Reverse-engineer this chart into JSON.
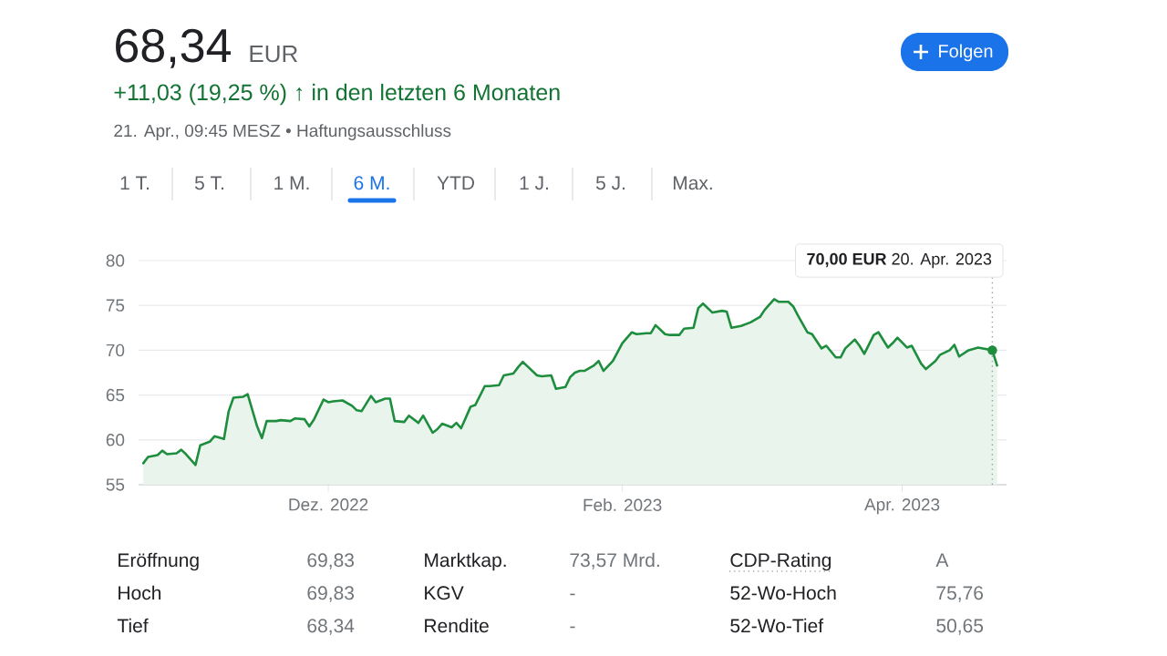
{
  "chart_data": {
    "type": "area",
    "color": "#1e8e3e",
    "x": [
      "2022-10-23",
      "2022-10-24",
      "2022-10-26",
      "2022-10-27",
      "2022-10-28",
      "2022-10-30",
      "2022-10-31",
      "2022-11-01",
      "2022-11-03",
      "2022-11-04",
      "2022-11-06",
      "2022-11-07",
      "2022-11-09",
      "2022-11-10",
      "2022-11-11",
      "2022-11-13",
      "2022-11-14",
      "2022-11-16",
      "2022-11-17",
      "2022-11-18",
      "2022-11-20",
      "2022-11-21",
      "2022-11-23",
      "2022-11-24",
      "2022-11-26",
      "2022-11-27",
      "2022-11-28",
      "2022-11-30",
      "2022-12-01",
      "2022-12-02",
      "2022-12-04",
      "2022-12-06",
      "2022-12-07",
      "2022-12-08",
      "2022-12-10",
      "2022-12-11",
      "2022-12-13",
      "2022-12-14",
      "2022-12-15",
      "2022-12-17",
      "2022-12-18",
      "2022-12-20",
      "2022-12-21",
      "2022-12-23",
      "2022-12-24",
      "2022-12-25",
      "2022-12-27",
      "2022-12-28",
      "2022-12-29",
      "2022-12-31",
      "2023-01-01",
      "2023-01-03",
      "2023-01-04",
      "2023-01-06",
      "2023-01-07",
      "2023-01-09",
      "2023-01-10",
      "2023-01-11",
      "2023-01-12",
      "2023-01-14",
      "2023-01-15",
      "2023-01-17",
      "2023-01-18",
      "2023-01-20",
      "2023-01-21",
      "2023-01-22",
      "2023-01-23",
      "2023-01-24",
      "2023-01-26",
      "2023-01-27",
      "2023-01-28",
      "2023-01-30",
      "2023-02-01",
      "2023-02-03",
      "2023-02-04",
      "2023-02-06",
      "2023-02-07",
      "2023-02-08",
      "2023-02-10",
      "2023-02-11",
      "2023-02-13",
      "2023-02-14",
      "2023-02-16",
      "2023-02-17",
      "2023-02-18",
      "2023-02-20",
      "2023-02-22",
      "2023-02-23",
      "2023-02-24",
      "2023-02-26",
      "2023-02-28",
      "2023-03-02",
      "2023-03-03",
      "2023-03-05",
      "2023-03-06",
      "2023-03-08",
      "2023-03-09",
      "2023-03-10",
      "2023-03-12",
      "2023-03-13",
      "2023-03-15",
      "2023-03-16",
      "2023-03-18",
      "2023-03-19",
      "2023-03-20",
      "2023-03-22",
      "2023-03-23",
      "2023-03-24",
      "2023-03-26",
      "2023-03-27",
      "2023-03-29",
      "2023-03-30",
      "2023-03-31",
      "2023-04-02",
      "2023-04-03",
      "2023-04-05",
      "2023-04-06",
      "2023-04-08",
      "2023-04-09",
      "2023-04-11",
      "2023-04-12",
      "2023-04-13",
      "2023-04-15",
      "2023-04-17",
      "2023-04-20",
      "2023-04-21"
    ],
    "values": [
      57.4,
      58.1,
      58.3,
      58.8,
      58.4,
      58.5,
      58.9,
      58.4,
      57.2,
      59.4,
      59.8,
      60.4,
      60.1,
      63.2,
      64.7,
      64.8,
      65.1,
      61.5,
      60.2,
      62.1,
      62.1,
      62.2,
      62.1,
      62.4,
      62.3,
      61.5,
      62.3,
      64.5,
      64.2,
      64.3,
      64.4,
      63.8,
      63.3,
      63.2,
      64.9,
      64.2,
      64.6,
      64.6,
      62.1,
      62.0,
      62.7,
      61.9,
      62.7,
      60.8,
      61.2,
      61.8,
      61.4,
      61.9,
      61.3,
      63.7,
      63.9,
      66.0,
      66.0,
      66.1,
      67.2,
      67.4,
      68.1,
      68.7,
      68.2,
      67.2,
      67.1,
      67.2,
      65.7,
      65.9,
      67.0,
      67.5,
      67.7,
      67.7,
      68.3,
      68.8,
      67.7,
      68.8,
      70.8,
      72.0,
      71.8,
      71.9,
      71.9,
      72.8,
      71.8,
      71.7,
      71.7,
      72.4,
      72.5,
      74.7,
      75.2,
      74.2,
      74.4,
      74.3,
      72.5,
      72.7,
      73.1,
      73.7,
      74.5,
      75.7,
      75.4,
      75.4,
      74.9,
      73.9,
      72.0,
      71.8,
      70.2,
      70.5,
      69.2,
      69.2,
      70.2,
      71.2,
      70.5,
      69.6,
      71.7,
      72.0,
      70.3,
      70.8,
      71.4,
      70.3,
      70.5,
      68.5,
      67.9,
      68.8,
      69.5,
      70.0,
      70.6,
      69.3,
      70.0,
      70.3,
      70.0,
      68.3
    ],
    "xlim": [
      "2022-10-22",
      "2023-04-23"
    ],
    "xticks": [
      {
        "value": "2022-12-01",
        "label": "Dez. 2022"
      },
      {
        "value": "2023-02-01",
        "label": "Feb. 2023"
      },
      {
        "value": "2023-04-01",
        "label": "Apr. 2023"
      }
    ],
    "ylim": [
      55,
      80
    ],
    "yticks": [
      55,
      60,
      65,
      70,
      75,
      80
    ],
    "grid": "y",
    "ref_lines": [
      {
        "axis": "x",
        "value": "2023-04-20",
        "line_style": "dotted",
        "color": "#9aa0a6"
      }
    ],
    "annotations": [
      "68,34",
      "EUR",
      "+11,03 (19,25 %) ↑ in den letzten 6 Monaten",
      "21. Apr., 09:45 MESZ • Haftungsausschluss",
      "Folgen",
      "1 T.",
      "5 T.",
      "1 M.",
      "6 M.",
      "YTD",
      "1 J.",
      "5 J.",
      "Max.",
      "Eröffnung",
      "69,83",
      "Marktkap.",
      "73,57 Mrd.",
      "CDP-Rating",
      "A",
      "Hoch",
      "69,83",
      "KGV",
      "-",
      "52-Wo-Hoch",
      "75,76",
      "Tief",
      "68,34",
      "Rendite",
      "-",
      "52-Wo-Tief",
      "50,65",
      "**70,00 EUR**  20. Apr. 2023"
    ]
  }
}
